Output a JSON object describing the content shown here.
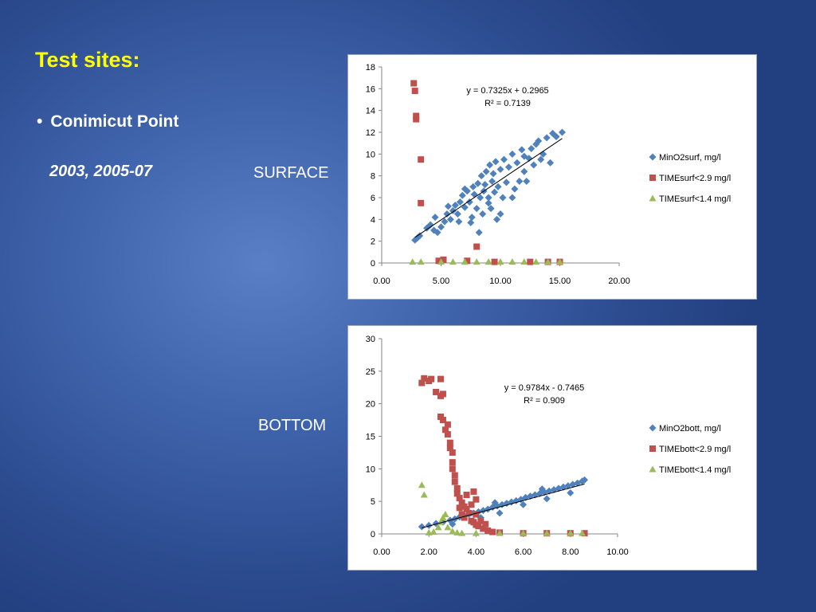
{
  "slide": {
    "title": "Test sites:",
    "bullet": "Conimicut Point",
    "years": "2003, 2005-07",
    "surface_label": "SURFACE",
    "bottom_label": "BOTTOM"
  },
  "colors": {
    "blue": "#4f81bd",
    "red": "#c0504d",
    "green": "#9bbb59"
  },
  "chart_data": [
    {
      "type": "scatter",
      "xlim": [
        0,
        20
      ],
      "ylim": [
        0,
        18
      ],
      "x_ticks": [
        "0.00",
        "5.00",
        "10.00",
        "15.00",
        "20.00"
      ],
      "y_ticks": [
        "0",
        "2",
        "4",
        "6",
        "8",
        "10",
        "12",
        "14",
        "16",
        "18"
      ],
      "legend_position": "right",
      "annotation": {
        "line1": "y = 0.7325x + 0.2965",
        "line2": "R² = 0.7139"
      },
      "trendline": {
        "slope": 0.7325,
        "intercept": 0.2965,
        "x_range": [
          2.8,
          15.2
        ]
      },
      "series": [
        {
          "name": "MinO2surf, mg/l",
          "marker": "diamond",
          "points": [
            [
              2.8,
              2.1
            ],
            [
              3.0,
              2.3
            ],
            [
              3.2,
              2.5
            ],
            [
              3.8,
              3.2
            ],
            [
              4.1,
              3.5
            ],
            [
              4.4,
              3.0
            ],
            [
              4.7,
              2.8
            ],
            [
              5.0,
              3.3
            ],
            [
              4.5,
              4.2
            ],
            [
              5.3,
              3.8
            ],
            [
              5.5,
              4.5
            ],
            [
              5.8,
              4.0
            ],
            [
              6.0,
              4.8
            ],
            [
              6.2,
              5.3
            ],
            [
              6.4,
              4.5
            ],
            [
              6.6,
              5.6
            ],
            [
              6.8,
              6.2
            ],
            [
              7.0,
              5.1
            ],
            [
              7.2,
              6.6
            ],
            [
              7.4,
              5.6
            ],
            [
              7.5,
              3.7
            ],
            [
              7.6,
              4.2
            ],
            [
              7.7,
              7.0
            ],
            [
              7.8,
              6.3
            ],
            [
              8.0,
              5.0
            ],
            [
              8.1,
              7.3
            ],
            [
              8.3,
              6.0
            ],
            [
              8.4,
              8.0
            ],
            [
              8.5,
              4.5
            ],
            [
              8.6,
              6.6
            ],
            [
              8.7,
              7.2
            ],
            [
              8.8,
              8.4
            ],
            [
              9.0,
              6.0
            ],
            [
              9.1,
              9.0
            ],
            [
              9.2,
              5.0
            ],
            [
              9.3,
              7.5
            ],
            [
              9.4,
              8.2
            ],
            [
              9.5,
              6.5
            ],
            [
              9.6,
              9.3
            ],
            [
              9.7,
              4.0
            ],
            [
              9.8,
              7.0
            ],
            [
              10.0,
              8.6
            ],
            [
              10.2,
              6.0
            ],
            [
              10.3,
              9.5
            ],
            [
              10.5,
              7.4
            ],
            [
              10.7,
              8.8
            ],
            [
              11.0,
              10.0
            ],
            [
              11.2,
              6.8
            ],
            [
              11.4,
              9.2
            ],
            [
              11.6,
              7.5
            ],
            [
              11.8,
              10.4
            ],
            [
              12.0,
              8.4
            ],
            [
              12.2,
              7.5
            ],
            [
              12.4,
              9.6
            ],
            [
              12.6,
              10.5
            ],
            [
              12.8,
              9.0
            ],
            [
              13.0,
              10.9
            ],
            [
              13.2,
              11.2
            ],
            [
              13.4,
              9.5
            ],
            [
              13.6,
              10.0
            ],
            [
              13.9,
              11.5
            ],
            [
              14.2,
              9.2
            ],
            [
              14.4,
              11.9
            ],
            [
              14.7,
              11.6
            ],
            [
              15.2,
              12.0
            ],
            [
              8.2,
              2.8
            ],
            [
              9.0,
              5.5
            ],
            [
              10.0,
              4.5
            ],
            [
              11.0,
              6.0
            ],
            [
              12.0,
              9.8
            ],
            [
              6.5,
              3.8
            ],
            [
              7.0,
              6.8
            ],
            [
              5.6,
              5.2
            ]
          ]
        },
        {
          "name": "TIMEsurf<2.9 mg/l",
          "marker": "square",
          "points": [
            [
              2.7,
              16.5
            ],
            [
              2.8,
              15.8
            ],
            [
              2.9,
              13.5
            ],
            [
              2.9,
              13.2
            ],
            [
              3.3,
              9.5
            ],
            [
              3.3,
              5.5
            ],
            [
              4.8,
              0.2
            ],
            [
              5.2,
              0.3
            ],
            [
              7.2,
              0.2
            ],
            [
              8.0,
              1.5
            ],
            [
              9.5,
              0.1
            ],
            [
              12.5,
              0.1
            ],
            [
              14.0,
              0.1
            ],
            [
              15.0,
              0.1
            ]
          ]
        },
        {
          "name": "TIMEsurf<1.4 mg/l",
          "marker": "triangle",
          "points": [
            [
              2.6,
              0.1
            ],
            [
              3.3,
              0.1
            ],
            [
              5.0,
              0.1
            ],
            [
              6.0,
              0.1
            ],
            [
              7.0,
              0.1
            ],
            [
              8.0,
              0.1
            ],
            [
              9.0,
              0.1
            ],
            [
              10.0,
              0.1
            ],
            [
              11.0,
              0.1
            ],
            [
              12.0,
              0.1
            ],
            [
              13.0,
              0.1
            ],
            [
              14.0,
              0.1
            ],
            [
              15.0,
              0.1
            ]
          ]
        }
      ]
    },
    {
      "type": "scatter",
      "xlim": [
        0,
        10
      ],
      "ylim": [
        0,
        30
      ],
      "x_ticks": [
        "0.00",
        "2.00",
        "4.00",
        "6.00",
        "8.00",
        "10.00"
      ],
      "y_ticks": [
        "0",
        "5",
        "10",
        "15",
        "20",
        "25",
        "30"
      ],
      "legend_position": "right",
      "annotation": {
        "line1": "y = 0.9784x - 0.7465",
        "line2": "R² = 0.909"
      },
      "trendline": {
        "slope": 0.9784,
        "intercept": -0.7465,
        "x_range": [
          1.7,
          8.6
        ]
      },
      "series": [
        {
          "name": "MinO2bott, mg/l",
          "marker": "diamond",
          "points": [
            [
              1.7,
              1.1
            ],
            [
              2.0,
              1.3
            ],
            [
              2.3,
              1.6
            ],
            [
              2.6,
              1.8
            ],
            [
              2.9,
              2.1
            ],
            [
              3.1,
              2.3
            ],
            [
              3.3,
              2.6
            ],
            [
              3.5,
              2.8
            ],
            [
              3.7,
              3.0
            ],
            [
              3.9,
              3.2
            ],
            [
              4.1,
              3.4
            ],
            [
              4.3,
              3.6
            ],
            [
              4.5,
              3.8
            ],
            [
              4.7,
              4.1
            ],
            [
              4.9,
              4.3
            ],
            [
              5.1,
              4.5
            ],
            [
              5.3,
              4.7
            ],
            [
              5.5,
              4.9
            ],
            [
              5.7,
              5.1
            ],
            [
              5.9,
              5.3
            ],
            [
              6.1,
              5.6
            ],
            [
              6.3,
              5.8
            ],
            [
              6.5,
              6.0
            ],
            [
              6.7,
              6.2
            ],
            [
              6.9,
              6.4
            ],
            [
              7.1,
              6.6
            ],
            [
              7.3,
              6.8
            ],
            [
              7.5,
              7.0
            ],
            [
              7.7,
              7.2
            ],
            [
              7.9,
              7.4
            ],
            [
              8.1,
              7.6
            ],
            [
              8.3,
              7.8
            ],
            [
              8.5,
              8.1
            ],
            [
              8.6,
              8.3
            ],
            [
              4.2,
              2.5
            ],
            [
              5.0,
              3.2
            ],
            [
              6.0,
              4.5
            ],
            [
              7.0,
              5.4
            ],
            [
              8.0,
              6.3
            ],
            [
              3.0,
              1.5
            ],
            [
              4.8,
              4.8
            ],
            [
              6.8,
              6.9
            ]
          ]
        },
        {
          "name": "TIMEbott<2.9 mg/l",
          "marker": "square",
          "points": [
            [
              1.7,
              23.2
            ],
            [
              1.8,
              23.9
            ],
            [
              2.0,
              23.5
            ],
            [
              2.1,
              23.8
            ],
            [
              2.3,
              21.8
            ],
            [
              2.5,
              21.2
            ],
            [
              2.5,
              23.8
            ],
            [
              2.6,
              21.5
            ],
            [
              2.5,
              18.0
            ],
            [
              2.6,
              17.5
            ],
            [
              2.7,
              16.0
            ],
            [
              2.8,
              15.3
            ],
            [
              2.8,
              16.8
            ],
            [
              2.9,
              14.0
            ],
            [
              2.9,
              13.2
            ],
            [
              3.0,
              12.5
            ],
            [
              3.0,
              11.0
            ],
            [
              3.0,
              10.0
            ],
            [
              3.1,
              9.0
            ],
            [
              3.1,
              8.0
            ],
            [
              3.2,
              7.0
            ],
            [
              3.2,
              6.2
            ],
            [
              3.3,
              5.5
            ],
            [
              3.4,
              4.8
            ],
            [
              3.5,
              4.2
            ],
            [
              3.6,
              3.8
            ],
            [
              3.7,
              3.2
            ],
            [
              3.3,
              4.0
            ],
            [
              3.5,
              2.5
            ],
            [
              3.8,
              2.0
            ],
            [
              3.9,
              1.8
            ],
            [
              4.0,
              1.4
            ],
            [
              4.1,
              1.2
            ],
            [
              4.3,
              0.8
            ],
            [
              4.5,
              0.5
            ],
            [
              4.7,
              0.3
            ],
            [
              3.6,
              6.0
            ],
            [
              3.8,
              4.5
            ],
            [
              4.0,
              3.0
            ],
            [
              4.2,
              2.0
            ],
            [
              4.4,
              1.5
            ],
            [
              3.4,
              3.0
            ],
            [
              3.9,
              6.5
            ],
            [
              4.0,
              5.3
            ],
            [
              5.0,
              0.2
            ],
            [
              6.0,
              0.1
            ],
            [
              7.0,
              0.1
            ],
            [
              8.0,
              0.1
            ],
            [
              8.6,
              0.1
            ]
          ]
        },
        {
          "name": "TIMEbott<1.4 mg/l",
          "marker": "triangle",
          "points": [
            [
              1.7,
              7.5
            ],
            [
              1.8,
              6.0
            ],
            [
              2.0,
              0.2
            ],
            [
              2.2,
              0.3
            ],
            [
              2.4,
              1.0
            ],
            [
              2.5,
              1.8
            ],
            [
              2.6,
              2.5
            ],
            [
              2.7,
              3.0
            ],
            [
              2.8,
              1.0
            ],
            [
              3.0,
              0.4
            ],
            [
              3.2,
              0.2
            ],
            [
              3.4,
              0.1
            ],
            [
              4.0,
              0.1
            ],
            [
              5.0,
              0.1
            ],
            [
              6.0,
              0.1
            ],
            [
              7.0,
              0.1
            ],
            [
              8.0,
              0.1
            ],
            [
              8.5,
              0.1
            ]
          ]
        }
      ]
    }
  ]
}
